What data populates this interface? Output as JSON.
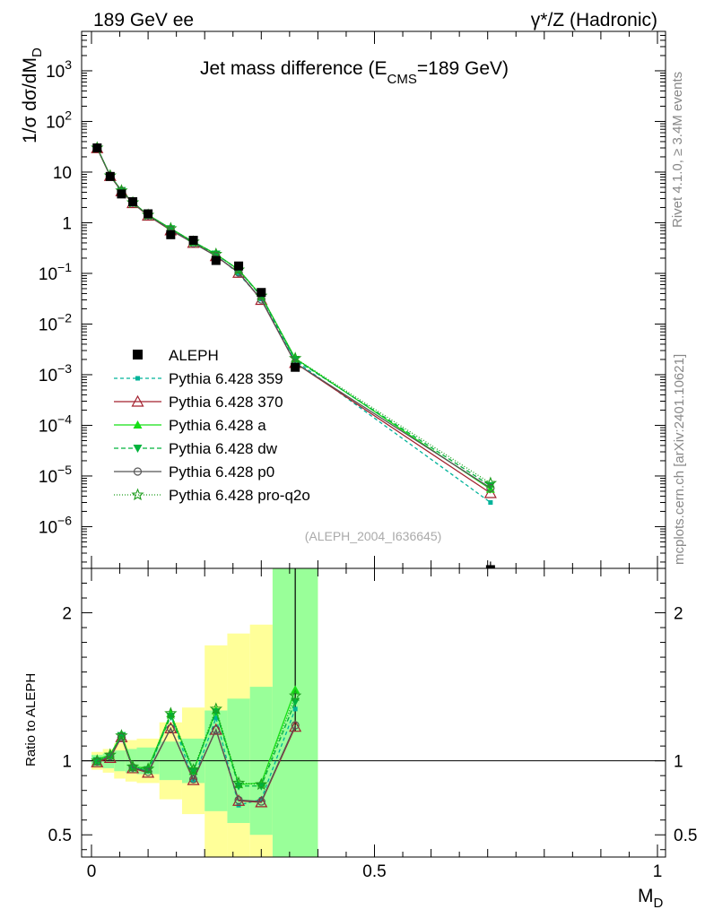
{
  "header": {
    "left": "189 GeV ee",
    "right": "γ*/Z (Hadronic)"
  },
  "side": {
    "rivet": "Rivet 4.1.0, ≥ 3.4M events",
    "source": "mcplots.cern.ch [arXiv:2401.10621]"
  },
  "chart_data": {
    "type": "scatter",
    "title": "Jet mass difference (E_CMS=189 GeV)",
    "title_parts": {
      "main": "Jet mass difference (E",
      "sub": "CMS",
      "tail": "=189 GeV)"
    },
    "ylabel_parts": {
      "main": "1/σ  dσ/dM",
      "sub": "D"
    },
    "xlabel_parts": {
      "main": "M",
      "sub": "D"
    },
    "ratio_ylabel": "Ratio to ALEPH",
    "watermark": "(ALEPH_2004_I636645)",
    "x_range": [
      0,
      1
    ],
    "main_y_range": [
      1.5e-07,
      6000
    ],
    "main_y_scale": "log",
    "ratio_y_range": [
      0.35,
      2.3
    ],
    "x_ticks": [
      {
        "v": 0,
        "label": "0"
      },
      {
        "v": 0.5,
        "label": "0.5"
      },
      {
        "v": 1,
        "label": "1"
      }
    ],
    "main_y_ticks": [
      {
        "v": 1e-06,
        "base": "10",
        "exp": "−6"
      },
      {
        "v": 1e-05,
        "base": "10",
        "exp": "−5"
      },
      {
        "v": 0.0001,
        "base": "10",
        "exp": "−4"
      },
      {
        "v": 0.001,
        "base": "10",
        "exp": "−3"
      },
      {
        "v": 0.01,
        "base": "10",
        "exp": "−2"
      },
      {
        "v": 0.1,
        "base": "10",
        "exp": "−1"
      },
      {
        "v": 1,
        "base": "1",
        "exp": ""
      },
      {
        "v": 10,
        "base": "10",
        "exp": ""
      },
      {
        "v": 100,
        "base": "10",
        "exp": "2"
      },
      {
        "v": 1000,
        "base": "10",
        "exp": "3"
      }
    ],
    "ratio_y_ticks": [
      {
        "v": 0.5,
        "label": "0.5"
      },
      {
        "v": 1,
        "label": "1"
      },
      {
        "v": 2,
        "label": "2"
      }
    ],
    "x": [
      0.01,
      0.033,
      0.053,
      0.073,
      0.1,
      0.14,
      0.18,
      0.22,
      0.26,
      0.3,
      0.36,
      0.705
    ],
    "bins": [
      [
        0.0,
        0.02
      ],
      [
        0.02,
        0.04
      ],
      [
        0.04,
        0.06
      ],
      [
        0.06,
        0.08
      ],
      [
        0.08,
        0.12
      ],
      [
        0.12,
        0.16
      ],
      [
        0.16,
        0.2
      ],
      [
        0.2,
        0.24
      ],
      [
        0.24,
        0.28
      ],
      [
        0.28,
        0.32
      ],
      [
        0.32,
        0.4
      ],
      [
        0.4,
        1.0
      ]
    ],
    "data": {
      "name": "ALEPH",
      "color": "#000000",
      "values": [
        30,
        8.2,
        3.7,
        2.6,
        1.5,
        0.58,
        0.45,
        0.18,
        0.14,
        0.042,
        0.0014,
        1.6e-07
      ]
    },
    "band_inner": [
      0.04,
      0.05,
      0.07,
      0.08,
      0.09,
      0.13,
      0.15,
      0.34,
      0.42,
      0.5,
      1.5,
      null
    ],
    "band_outer": [
      0.06,
      0.08,
      0.12,
      0.14,
      0.15,
      0.26,
      0.36,
      0.78,
      0.86,
      0.92,
      1.8,
      null
    ],
    "series": [
      {
        "name": "Pythia 6.428 359",
        "color": "#00b39a",
        "dash": "4,3",
        "marker": "square-small",
        "values": [
          29.7,
          8.5,
          4.3,
          2.5,
          1.4,
          0.76,
          0.39,
          0.23,
          0.098,
          0.031,
          0.0019,
          3e-06
        ],
        "ratio": [
          0.99,
          1.04,
          1.17,
          0.96,
          0.93,
          1.31,
          0.87,
          1.29,
          0.7,
          0.74,
          1.35,
          null
        ]
      },
      {
        "name": "Pythia 6.428 370",
        "color": "#a3202e",
        "dash": "",
        "marker": "triangle-open",
        "values": [
          29.6,
          8.4,
          4.2,
          2.45,
          1.38,
          0.71,
          0.4,
          0.22,
          0.103,
          0.03,
          0.0017,
          4.6e-06
        ],
        "ratio": [
          0.99,
          1.02,
          1.16,
          0.95,
          0.92,
          1.22,
          0.87,
          1.21,
          0.73,
          0.72,
          1.23,
          null
        ]
      },
      {
        "name": "Pythia 6.428 a",
        "color": "#14e014",
        "dash": "",
        "marker": "triangle-filled",
        "values": [
          30.3,
          8.5,
          4.35,
          2.5,
          1.43,
          0.77,
          0.42,
          0.24,
          0.118,
          0.036,
          0.0021,
          5.5e-06
        ],
        "ratio": [
          1.01,
          1.04,
          1.18,
          0.96,
          0.95,
          1.32,
          0.93,
          1.34,
          0.84,
          0.85,
          1.48,
          null
        ]
      },
      {
        "name": "Pythia 6.428 dw",
        "color": "#00b33c",
        "dash": "5,3",
        "marker": "triangle-down",
        "values": [
          30.1,
          8.5,
          4.3,
          2.5,
          1.42,
          0.76,
          0.42,
          0.24,
          0.117,
          0.035,
          0.002,
          6.4e-06
        ],
        "ratio": [
          1.0,
          1.03,
          1.17,
          0.95,
          0.94,
          1.3,
          0.93,
          1.33,
          0.83,
          0.83,
          1.4,
          null
        ]
      },
      {
        "name": "Pythia 6.428 p0",
        "color": "#555555",
        "dash": "",
        "marker": "circle-open",
        "values": [
          29.8,
          8.45,
          4.25,
          2.48,
          1.39,
          0.72,
          0.395,
          0.22,
          0.104,
          0.0305,
          0.0017,
          5.8e-06
        ],
        "ratio": [
          0.995,
          1.03,
          1.16,
          0.955,
          0.925,
          1.22,
          0.875,
          1.21,
          0.735,
          0.725,
          1.24,
          null
        ]
      },
      {
        "name": "Pythia 6.428 pro-q2o",
        "color": "#1e9e1e",
        "dash": "1,2",
        "marker": "star-open",
        "values": [
          30.2,
          8.5,
          4.3,
          2.5,
          1.42,
          0.77,
          0.42,
          0.24,
          0.118,
          0.036,
          0.0021,
          7.2e-06
        ],
        "ratio": [
          1.0,
          1.04,
          1.17,
          0.96,
          0.945,
          1.32,
          0.94,
          1.35,
          0.85,
          0.84,
          1.44,
          null
        ]
      }
    ]
  }
}
